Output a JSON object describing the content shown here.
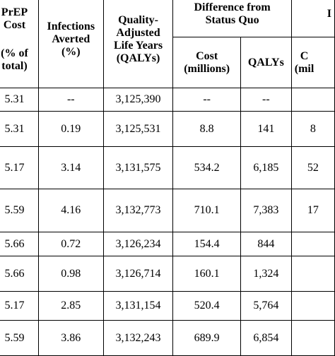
{
  "table": {
    "headers": {
      "prep_cost": [
        "PrEP",
        "Cost",
        "(% of",
        "total)"
      ],
      "infections": [
        "Infections",
        "Averted",
        "(%)"
      ],
      "qalys": [
        "Quality-",
        "Adjusted",
        "Life Years",
        "(QALYs)"
      ],
      "difference": [
        "Difference from",
        "Status Quo"
      ],
      "diff_cost": [
        "Cost",
        "(millions)"
      ],
      "diff_qalys": "QALYs",
      "partial_group": "I",
      "partial_cost": [
        "C",
        "(mil"
      ]
    },
    "rows": [
      {
        "prep": "5.31",
        "infections": "--",
        "qalys": "3,125,390",
        "cost": "--",
        "qaly_diff": "--",
        "partial": ""
      },
      {
        "prep": "5.31",
        "infections": "0.19",
        "qalys": "3,125,531",
        "cost": "8.8",
        "qaly_diff": "141",
        "partial": "8"
      },
      {
        "prep": "5.17",
        "infections": "3.14",
        "qalys": "3,131,575",
        "cost": "534.2",
        "qaly_diff": "6,185",
        "partial": "52"
      },
      {
        "prep": "5.59",
        "infections": "4.16",
        "qalys": "3,132,773",
        "cost": "710.1",
        "qaly_diff": "7,383",
        "partial": "17"
      },
      {
        "prep": "5.66",
        "infections": "0.72",
        "qalys": "3,126,234",
        "cost": "154.4",
        "qaly_diff": "844",
        "partial": ""
      },
      {
        "prep": "5.66",
        "infections": "0.98",
        "qalys": "3,126,714",
        "cost": "160.1",
        "qaly_diff": "1,324",
        "partial": ""
      },
      {
        "prep": "5.17",
        "infections": "2.85",
        "qalys": "3,131,154",
        "cost": "520.4",
        "qaly_diff": "5,764",
        "partial": ""
      },
      {
        "prep": "5.59",
        "infections": "3.86",
        "qalys": "3,132,243",
        "cost": "689.9",
        "qaly_diff": "6,854",
        "partial": ""
      }
    ]
  }
}
